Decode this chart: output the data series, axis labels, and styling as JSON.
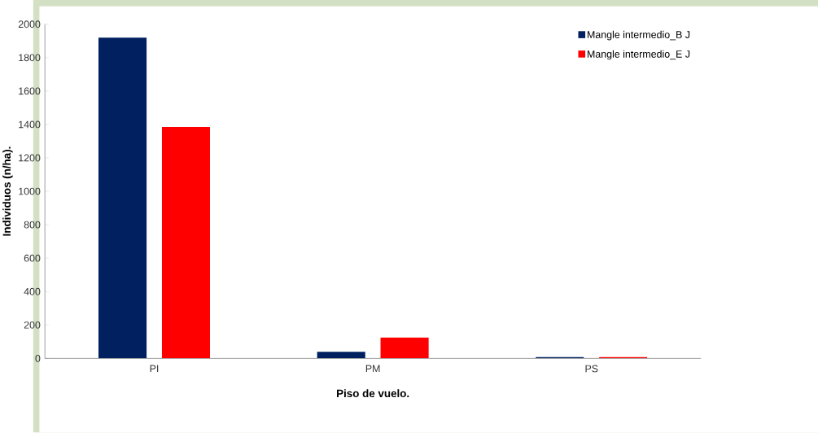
{
  "chart_data": {
    "type": "bar",
    "xlabel": "Piso de vuelo.",
    "ylabel": "Individuos (n/ha).",
    "categories": [
      "PI",
      "PM",
      "PS"
    ],
    "series": [
      {
        "name": "Mangle intermedio_B J",
        "color": "#002060",
        "values": [
          1920,
          40,
          8
        ]
      },
      {
        "name": "Mangle intermedio_E J",
        "color": "#ff0000",
        "values": [
          1385,
          125,
          8
        ]
      }
    ],
    "ylim": [
      0,
      2000
    ],
    "yticks": [
      0,
      200,
      400,
      600,
      800,
      1000,
      1200,
      1400,
      1600,
      1800,
      2000
    ],
    "legend": "top right",
    "grid": false
  }
}
